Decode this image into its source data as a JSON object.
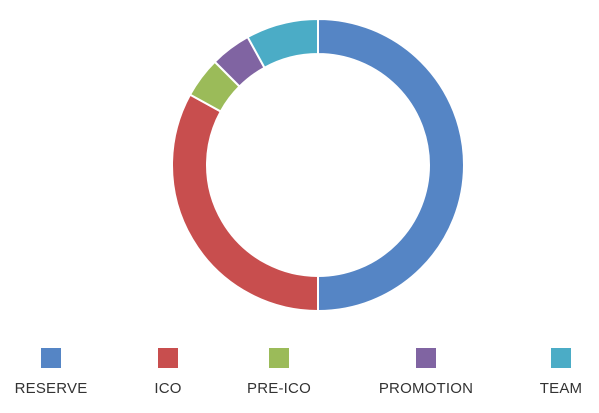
{
  "chart_data": {
    "type": "pie",
    "variant": "donut",
    "title": "",
    "legend_placement": "bottom",
    "series": [
      {
        "name": "RESERVE",
        "value": 50,
        "color": "#5585c5"
      },
      {
        "name": "ICO",
        "value": 33,
        "color": "#c84e4e"
      },
      {
        "name": "PRE-ICO",
        "value": 4.5,
        "color": "#9bbb59"
      },
      {
        "name": "PROMOTION",
        "value": 4.5,
        "color": "#8064a2"
      },
      {
        "name": "TEAM",
        "value": 8,
        "color": "#4bacc6"
      }
    ]
  }
}
